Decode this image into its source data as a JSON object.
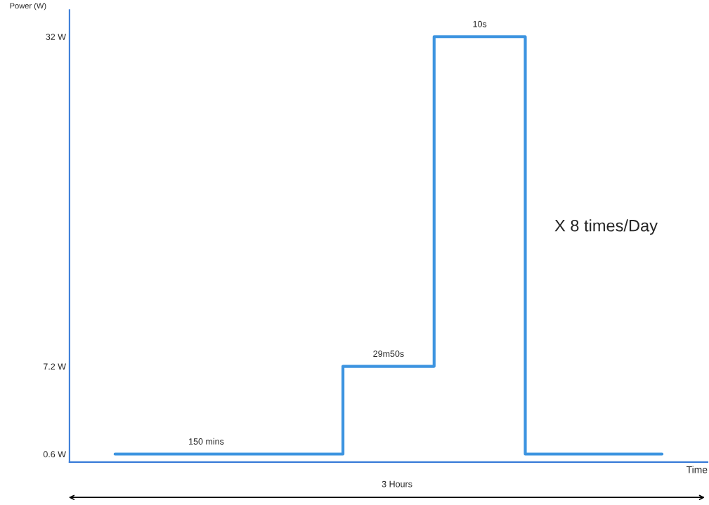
{
  "chart_data": {
    "type": "step",
    "ylabel": "Power (W)",
    "xlabel": "Time",
    "categories": [
      null,
      null,
      null,
      null,
      null,
      null,
      null
    ],
    "series": [
      {
        "color": "#3d94e0",
        "values": [
          0.6,
          0.6,
          0.6,
          7.2,
          32,
          0.6,
          0.6
        ]
      }
    ],
    "ylim": [
      0,
      34
    ],
    "yticks": [
      {
        "value": 0.6,
        "label": "0.6 W"
      },
      {
        "value": 7.2,
        "label": "7.2 W"
      },
      {
        "value": 32,
        "label": "32 W"
      }
    ],
    "tick_labels": "y",
    "grid": false,
    "legend": false,
    "annotations": [
      "150 mins",
      "29m50s",
      "10s",
      "X 8 times/Day",
      "3 Hours"
    ]
  }
}
